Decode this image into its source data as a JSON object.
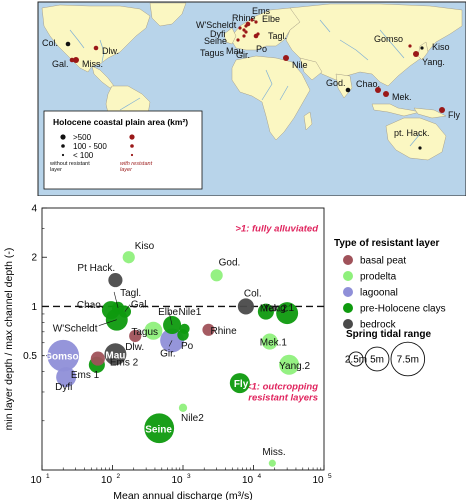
{
  "colors": {
    "ocean": "#b8d4ea",
    "land": "#fbf7c2",
    "river": "#7fb0d6",
    "marker_without": "#111111",
    "marker_with": "#9a1818",
    "basal_peat": "#a0525a",
    "prodelta": "#8ff07c",
    "lagoonal": "#8f8fd8",
    "pre_holocene_clays": "#0e9a0e",
    "bedrock": "#4a4a4a",
    "annotation": "#e0245e"
  },
  "map": {
    "legend": {
      "title": "Holocene coastal plain area (km²)",
      "sizes": [
        ">500",
        "100 - 500",
        "< 100"
      ],
      "without_label": "without resistant layer",
      "with_label": "with resistant layer"
    },
    "sites": [
      {
        "label": "Col.",
        "resistant": false,
        "size": "medium"
      },
      {
        "label": "Gal.",
        "resistant": true,
        "size": "medium"
      },
      {
        "label": "Miss.",
        "resistant": true,
        "size": "large"
      },
      {
        "label": "Dlw.",
        "resistant": true,
        "size": "medium"
      },
      {
        "label": "Rhine",
        "resistant": true,
        "size": "medium"
      },
      {
        "label": "Ems",
        "resistant": true,
        "size": "small"
      },
      {
        "label": "W'Scheldt",
        "resistant": true,
        "size": "small"
      },
      {
        "label": "Elbe",
        "resistant": true,
        "size": "small"
      },
      {
        "label": "Dyfi",
        "resistant": true,
        "size": "small"
      },
      {
        "label": "Seine",
        "resistant": true,
        "size": "small"
      },
      {
        "label": "Tagl.",
        "resistant": true,
        "size": "small"
      },
      {
        "label": "Mau",
        "resistant": true,
        "size": "small"
      },
      {
        "label": "Gir.",
        "resistant": true,
        "size": "small"
      },
      {
        "label": "Po",
        "resistant": true,
        "size": "medium"
      },
      {
        "label": "Tagus",
        "resistant": true,
        "size": "small"
      },
      {
        "label": "Nile",
        "resistant": true,
        "size": "large"
      },
      {
        "label": "God.",
        "resistant": false,
        "size": "medium"
      },
      {
        "label": "Gomso",
        "resistant": true,
        "size": "small"
      },
      {
        "label": "Kiso",
        "resistant": false,
        "size": "small"
      },
      {
        "label": "Yang.",
        "resistant": true,
        "size": "large"
      },
      {
        "label": "Chao.",
        "resistant": true,
        "size": "large"
      },
      {
        "label": "Mek.",
        "resistant": true,
        "size": "large"
      },
      {
        "label": "Fly",
        "resistant": true,
        "size": "large"
      },
      {
        "label": "pt. Hack.",
        "resistant": false,
        "size": "small"
      }
    ]
  },
  "chart_data": {
    "type": "scatter",
    "xlabel": "Mean annual discharge (m³/s)",
    "ylabel": "min layer depth / max channel depth (-)",
    "xscale": "log",
    "yscale": "log",
    "xlim": [
      10,
      100000
    ],
    "ylim": [
      0.1,
      4
    ],
    "xticks": [
      {
        "value": 10,
        "base": "10",
        "exp": "1"
      },
      {
        "value": 100,
        "base": "10",
        "exp": "2"
      },
      {
        "value": 1000,
        "base": "10",
        "exp": "3"
      },
      {
        "value": 10000,
        "base": "10",
        "exp": "4"
      },
      {
        "value": 100000,
        "base": "10",
        "exp": "5"
      }
    ],
    "yticks": [
      {
        "value": 0.5,
        "label": "0.5"
      },
      {
        "value": 1,
        "label": "1"
      },
      {
        "value": 2,
        "label": "2"
      },
      {
        "value": 4,
        "label": "4"
      }
    ],
    "reference_line": 1,
    "annotations": {
      "upper": ">1: fully alluviated",
      "lower_line1": "<1: outcropping",
      "lower_line2": "resistant layers"
    },
    "legend_title": "Type of resistant layer",
    "categories": [
      {
        "key": "basal_peat",
        "name": "basal peat",
        "color": "#a0525a"
      },
      {
        "key": "prodelta",
        "name": "prodelta",
        "color": "#8ff07c"
      },
      {
        "key": "lagoonal",
        "name": "lagoonal",
        "color": "#8f8fd8"
      },
      {
        "key": "pre_holocene_clays",
        "name": "pre-Holocene clays",
        "color": "#0e9a0e"
      },
      {
        "key": "bedrock",
        "name": "bedrock",
        "color": "#4a4a4a"
      }
    ],
    "size_legend": {
      "title": "Spring tidal range",
      "entries": [
        {
          "label": "2.5m",
          "tide": 2.5
        },
        {
          "label": "5m",
          "tide": 5
        },
        {
          "label": "7.5m",
          "tide": 7.5
        }
      ]
    },
    "points": [
      {
        "label": "Kiso",
        "x": 170,
        "y": 2.0,
        "tide": 2.0,
        "cat": "prodelta"
      },
      {
        "label": "Pt Hack.",
        "x": 110,
        "y": 1.45,
        "tide": 2.5,
        "cat": "bedrock"
      },
      {
        "label": "God.",
        "x": 3000,
        "y": 1.55,
        "tide": 2.0,
        "cat": "prodelta"
      },
      {
        "label": "Chao.",
        "x": 95,
        "y": 0.95,
        "tide": 3.5,
        "cat": "pre_holocene_clays"
      },
      {
        "label": "Tagl.",
        "x": 120,
        "y": 0.98,
        "tide": 2.0,
        "cat": "pre_holocene_clays"
      },
      {
        "label": "Gal.",
        "x": 150,
        "y": 0.93,
        "tide": 2.0,
        "cat": "pre_holocene_clays"
      },
      {
        "label": "W'Scheldt",
        "x": 115,
        "y": 0.83,
        "tide": 4.5,
        "cat": "pre_holocene_clays"
      },
      {
        "label": "Elbe",
        "x": 700,
        "y": 0.77,
        "tide": 3.5,
        "cat": "pre_holocene_clays"
      },
      {
        "label": "Tagus",
        "x": 380,
        "y": 0.71,
        "tide": 3.5,
        "cat": "prodelta"
      },
      {
        "label": "Nile1",
        "x": 1050,
        "y": 0.73,
        "tide": 1.5,
        "cat": "pre_holocene_clays"
      },
      {
        "label": "Dlw.",
        "x": 210,
        "y": 0.66,
        "tide": 2.0,
        "cat": "basal_peat"
      },
      {
        "label": "Gir.",
        "x": 700,
        "y": 0.62,
        "tide": 5.0,
        "cat": "lagoonal"
      },
      {
        "label": "Po",
        "x": 1000,
        "y": 0.67,
        "tide": 1.8,
        "cat": "pre_holocene_clays"
      },
      {
        "label": "Rhine",
        "x": 2300,
        "y": 0.72,
        "tide": 2.0,
        "cat": "basal_peat"
      },
      {
        "label": "Col.",
        "x": 7800,
        "y": 1.0,
        "tide": 3.0,
        "cat": "bedrock"
      },
      {
        "label": "Mek.2",
        "x": 15000,
        "y": 0.93,
        "tide": 3.0,
        "cat": "pre_holocene_clays"
      },
      {
        "label": "Yang.1",
        "x": 30000,
        "y": 0.91,
        "tide": 4.5,
        "cat": "pre_holocene_clays"
      },
      {
        "label": "Mek.1",
        "x": 17000,
        "y": 0.61,
        "tide": 3.0,
        "cat": "prodelta"
      },
      {
        "label": "Yang.2",
        "x": 32000,
        "y": 0.44,
        "tide": 4.0,
        "cat": "prodelta"
      },
      {
        "label": "Gomso",
        "x": 20,
        "y": 0.5,
        "tide": 7.0,
        "cat": "lagoonal"
      },
      {
        "label": "Mau",
        "x": 110,
        "y": 0.51,
        "tide": 4.5,
        "cat": "bedrock"
      },
      {
        "label": "Ems 2",
        "x": 62,
        "y": 0.48,
        "tide": 2.5,
        "cat": "basal_peat"
      },
      {
        "label": "Dyfi",
        "x": 22,
        "y": 0.37,
        "tide": 4.0,
        "cat": "lagoonal"
      },
      {
        "label": "Ems 1",
        "x": 60,
        "y": 0.44,
        "tide": 3.0,
        "cat": "pre_holocene_clays"
      },
      {
        "label": "Fly",
        "x": 6400,
        "y": 0.34,
        "tide": 4.0,
        "cat": "pre_holocene_clays"
      },
      {
        "label": "Nile2",
        "x": 1000,
        "y": 0.24,
        "tide": 1.0,
        "cat": "prodelta"
      },
      {
        "label": "Seine",
        "x": 460,
        "y": 0.18,
        "tide": 6.5,
        "cat": "pre_holocene_clays"
      },
      {
        "label": "Miss.",
        "x": 18500,
        "y": 0.11,
        "tide": 0.7,
        "cat": "prodelta"
      }
    ]
  }
}
